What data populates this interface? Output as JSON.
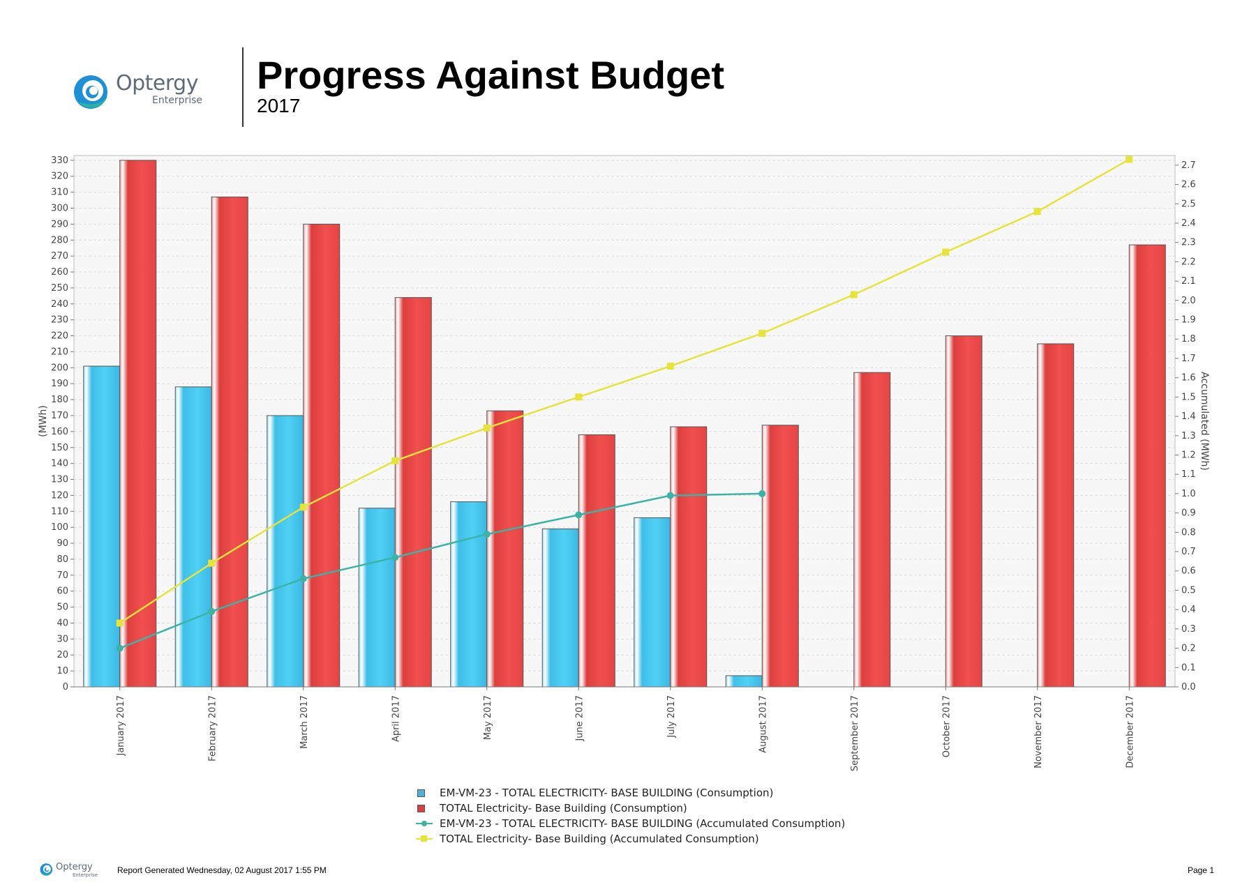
{
  "header": {
    "logo_name": "Optergy",
    "logo_sub": "Enterprise",
    "title": "Progress Against Budget",
    "subtitle": "2017"
  },
  "chart_data": {
    "type": "bar",
    "title": "Progress Against Budget",
    "subtitle": "2017",
    "categories": [
      "January 2017",
      "February 2017",
      "March 2017",
      "April 2017",
      "May 2017",
      "June 2017",
      "July 2017",
      "August 2017",
      "September 2017",
      "October 2017",
      "November 2017",
      "December 2017"
    ],
    "ylabel": "(MWh)",
    "y2label": "Accumulated  (MWh)",
    "ylim": [
      0,
      333
    ],
    "y2lim": [
      0,
      2.75
    ],
    "yticks": [
      0,
      10,
      20,
      30,
      40,
      50,
      60,
      70,
      80,
      90,
      100,
      110,
      120,
      130,
      140,
      150,
      160,
      170,
      180,
      190,
      200,
      210,
      220,
      230,
      240,
      250,
      260,
      270,
      280,
      290,
      300,
      310,
      320,
      330
    ],
    "y2ticks": [
      "0.0",
      "0.1",
      "0.2",
      "0.3",
      "0.4",
      "0.5",
      "0.6",
      "0.7",
      "0.8",
      "0.9",
      "1.0",
      "1.1",
      "1.2",
      "1.3",
      "1.4",
      "1.5",
      "1.6",
      "1.7",
      "1.8",
      "1.9",
      "2.0",
      "2.1",
      "2.2",
      "2.3",
      "2.4",
      "2.5",
      "2.6",
      "2.7"
    ],
    "grid": true,
    "legend_position": "bottom",
    "series": [
      {
        "name": "EM-VM-23 - TOTAL ELECTRICITY- BASE BUILDING (Consumption)",
        "kind": "bar",
        "axis": "left",
        "color": "#4fc8ee",
        "values": [
          201,
          188,
          170,
          112,
          116,
          99,
          106,
          7,
          null,
          null,
          null,
          null
        ]
      },
      {
        "name": "TOTAL Electricity- Base Building (Consumption)",
        "kind": "bar",
        "axis": "left",
        "color": "#e84848",
        "values": [
          330,
          307,
          290,
          244,
          173,
          158,
          163,
          164,
          197,
          220,
          215,
          277
        ]
      },
      {
        "name": "EM-VM-23 - TOTAL ELECTRICITY- BASE BUILDING (Accumulated Consumption)",
        "kind": "line",
        "axis": "right",
        "color": "#3bb3a6",
        "values": [
          0.2,
          0.39,
          0.56,
          0.67,
          0.79,
          0.89,
          0.99,
          1.0,
          null,
          null,
          null,
          null
        ]
      },
      {
        "name": "TOTAL Electricity- Base Building (Accumulated Consumption)",
        "kind": "line",
        "axis": "right",
        "color": "#e6e33a",
        "values": [
          0.33,
          0.64,
          0.93,
          1.17,
          1.34,
          1.5,
          1.66,
          1.83,
          2.03,
          2.25,
          2.46,
          2.73
        ]
      }
    ]
  },
  "footer": {
    "logo_name": "Optergy",
    "logo_sub": "Enterprise",
    "generated": "Report Generated Wednesday, 02 August 2017 1:55 PM",
    "page": "Page 1"
  }
}
